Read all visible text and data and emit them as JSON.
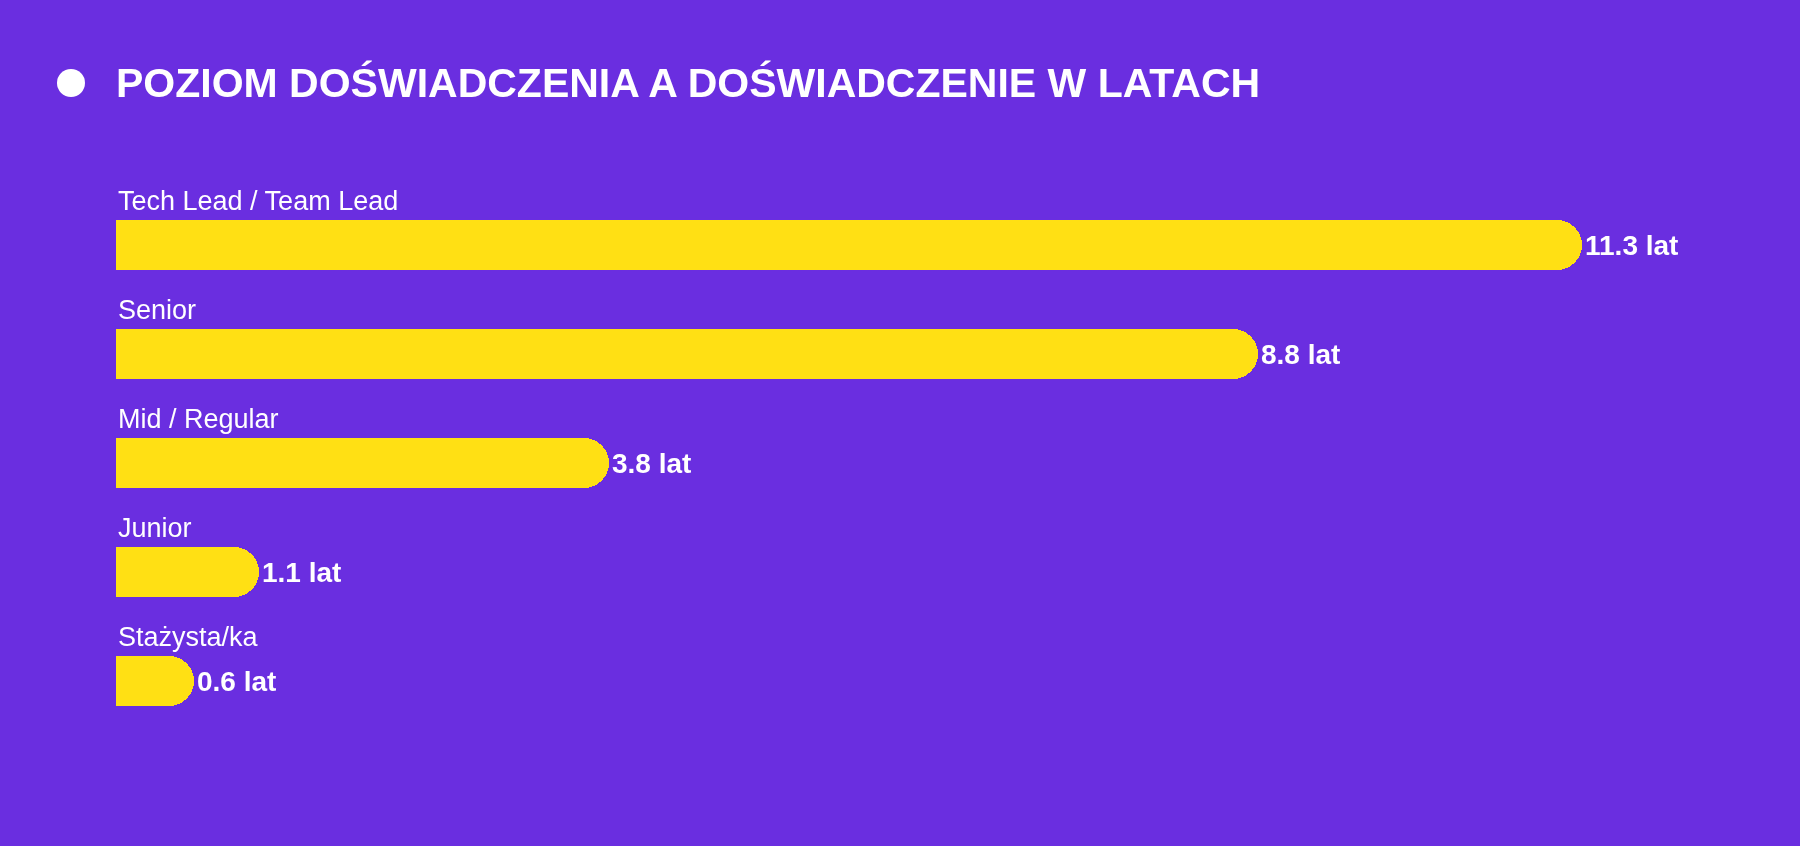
{
  "chart_data": {
    "type": "bar",
    "orientation": "horizontal",
    "title": "POZIOM DOŚWIADCZENIA A DOŚWIADCZENIE W LATACH",
    "categories": [
      "Tech Lead / Team Lead",
      "Senior",
      "Mid / Regular",
      "Junior",
      "Stażysta/ka"
    ],
    "values": [
      11.3,
      8.8,
      3.8,
      1.1,
      0.6
    ],
    "value_labels": [
      "11.3 lat",
      "8.8 lat",
      "3.8 lat",
      "1.1 lat",
      "0.6 lat"
    ],
    "color": "#ffe014",
    "tick_labels": "y"
  }
}
